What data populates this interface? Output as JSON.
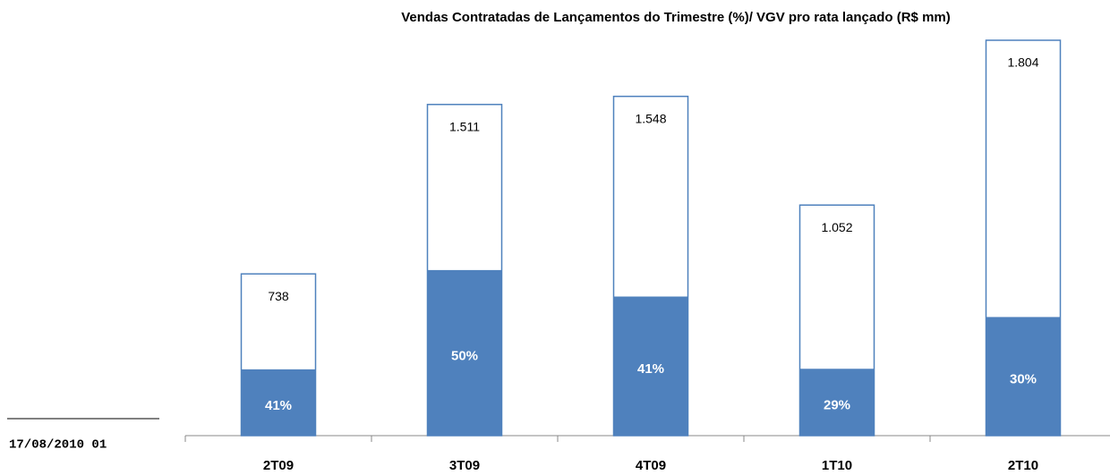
{
  "chart_data": {
    "type": "bar",
    "title": "Vendas  Contratadas de  Lançamentos do Trimestre  (%)/  VGV pro rata  lançado (R$ mm)",
    "categories": [
      "2T09",
      "3T09",
      "4T09",
      "1T10",
      "2T10"
    ],
    "values": [
      738,
      1511,
      1548,
      1052,
      1804
    ],
    "value_labels": [
      "738",
      "1.511",
      "1.548",
      "1.052",
      "1.804"
    ],
    "shares": [
      41,
      50,
      41,
      29,
      30
    ],
    "share_labels": [
      "41%",
      "50%",
      "41%",
      "29%",
      "30%"
    ],
    "color": "#4f81bd",
    "ylim": [
      0,
      1804
    ],
    "footer": "17/08/2010 01"
  }
}
